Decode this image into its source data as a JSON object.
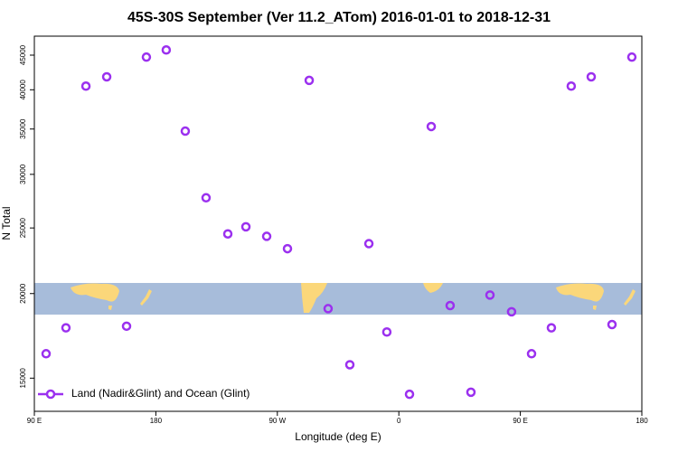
{
  "chart_data": {
    "type": "scatter",
    "title": "45S-30S September (Ver 11.2_ATom)   2016-01-01 to 2018-12-31",
    "x_label": "Longitude (deg E)",
    "y_label": "N Total",
    "xlim": [
      90,
      540
    ],
    "xticks": [
      {
        "value": 90,
        "label": "90 E"
      },
      {
        "value": 180,
        "label": "180"
      },
      {
        "value": 270,
        "label": "90 W"
      },
      {
        "value": 360,
        "label": "0"
      },
      {
        "value": 450,
        "label": "90 E"
      },
      {
        "value": 540,
        "label": "180"
      }
    ],
    "ylim": [
      13400,
      48000
    ],
    "yticks": [
      15000,
      20000,
      25000,
      30000,
      35000,
      40000,
      45000
    ],
    "log_scale_y": true,
    "legend_position": "lower left",
    "series": [
      {
        "name": "Land (Nadir&Glint) and Ocean (Glint)",
        "color": "#9b30ef",
        "x": [
          98.7,
          113.4,
          128.2,
          143.6,
          158.3,
          173,
          187.7,
          201.8,
          217.2,
          233.3,
          246.7,
          262.1,
          277.5,
          293.6,
          307.6,
          323.7,
          337.8,
          351.1,
          367.9,
          384,
          398,
          413.4,
          427.5,
          443.5,
          458.3,
          473,
          487.7,
          502.5,
          517.9,
          532.6
        ],
        "values": [
          16300,
          17800,
          40500,
          41800,
          17900,
          44700,
          45800,
          34750,
          27700,
          24500,
          25100,
          24300,
          23300,
          41300,
          19000,
          15700,
          23700,
          17550,
          14200,
          35300,
          19200,
          14300,
          19900,
          18800,
          16300,
          17800,
          40500,
          41800,
          18000,
          44700
        ]
      }
    ]
  }
}
